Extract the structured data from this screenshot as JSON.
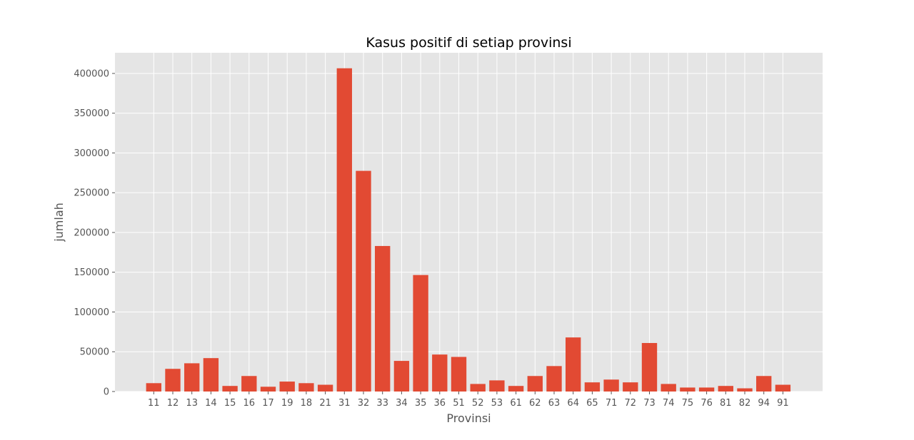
{
  "chart_data": {
    "type": "bar",
    "title": "Kasus positif di setiap provinsi",
    "xlabel": "Provinsi",
    "ylabel": "jumlah",
    "categories": [
      "11",
      "12",
      "13",
      "14",
      "15",
      "16",
      "17",
      "19",
      "18",
      "21",
      "31",
      "32",
      "33",
      "34",
      "35",
      "36",
      "51",
      "52",
      "53",
      "61",
      "62",
      "63",
      "64",
      "65",
      "71",
      "72",
      "73",
      "74",
      "75",
      "76",
      "81",
      "82",
      "94",
      "91"
    ],
    "values": [
      10500,
      28500,
      35500,
      42000,
      7000,
      19500,
      6000,
      12500,
      10500,
      8500,
      406500,
      277500,
      183000,
      38500,
      146500,
      46500,
      43500,
      9500,
      14000,
      7000,
      19500,
      32000,
      68000,
      11500,
      15000,
      11500,
      61000,
      9500,
      5000,
      5000,
      7000,
      4000,
      19500,
      8500
    ],
    "ylim": [
      0,
      426000
    ],
    "yticks": [
      "0",
      "50000",
      "100000",
      "150000",
      "200000",
      "250000",
      "300000",
      "350000",
      "400000"
    ],
    "grid": true,
    "colors": {
      "bar": "#e24a33",
      "background": "#e5e5e5",
      "grid": "#ffffff"
    }
  }
}
